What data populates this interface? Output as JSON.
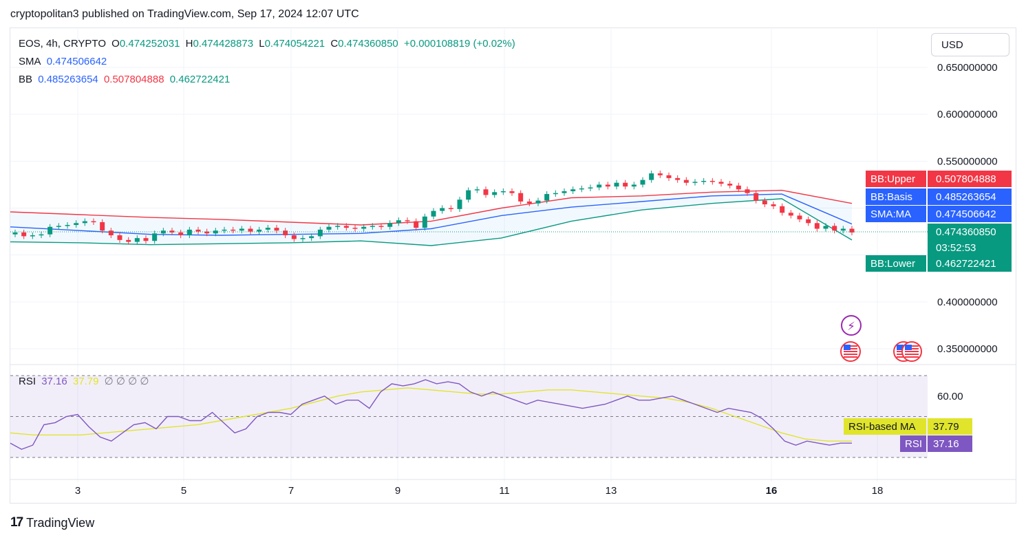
{
  "header": {
    "published_line": "cryptopolitan3 published on TradingView.com, Sep 17, 2024 12:07 UTC"
  },
  "legend": {
    "symbol": "EOS, 4h, CRYPTO",
    "open_label": "O",
    "open": "0.474252031",
    "high_label": "H",
    "high": "0.474428873",
    "low_label": "L",
    "low": "0.474054221",
    "close_label": "C",
    "close": "0.474360850",
    "change": "+0.000108819 (+0.02%)",
    "sma_label": "SMA",
    "sma": "0.474506642",
    "bb_label": "BB",
    "bb_basis": "0.485263654",
    "bb_upper": "0.507804888",
    "bb_lower": "0.462722421",
    "rsi_label": "RSI",
    "rsi": "37.16",
    "rsi_ma": "37.79",
    "rsi_extra": "∅ ∅ ∅ ∅"
  },
  "currency_button": "USD",
  "price_axis": {
    "ticks": [
      "0.650000000",
      "0.600000000",
      "0.550000000",
      "0.400000000",
      "0.350000000"
    ],
    "tick_values": [
      0.65,
      0.6,
      0.55,
      0.4,
      0.35
    ],
    "tags": [
      {
        "name": "BB:Upper",
        "value": "0.507804888",
        "color": "#f23645"
      },
      {
        "name": "BB:Basis",
        "value": "0.485263654",
        "color": "#2962ff"
      },
      {
        "name": "SMA:MA",
        "value": "0.474506642",
        "color": "#2962ff"
      },
      {
        "name": "",
        "value": "0.474360850",
        "sub": "03:52:53",
        "color": "#089981"
      },
      {
        "name": "BB:Lower",
        "value": "0.462722421",
        "color": "#089981"
      }
    ]
  },
  "rsi_axis": {
    "ticks": [
      "60.00"
    ],
    "tick_values": [
      60
    ],
    "tags": [
      {
        "name": "RSI-based MA",
        "value": "37.79",
        "color": "#e0e52b",
        "text": "#131722"
      },
      {
        "name": "RSI",
        "value": "37.16",
        "color": "#7e57c2",
        "text": "#ffffff"
      }
    ]
  },
  "time_axis": {
    "labels": [
      "3",
      "5",
      "7",
      "9",
      "11",
      "13",
      "16",
      "18"
    ],
    "bold": [
      "16"
    ]
  },
  "footer": {
    "brand": "TradingView"
  },
  "colors": {
    "up": "#089981",
    "down": "#f23645",
    "bb_upper": "#f23645",
    "bb_basis": "#2962ff",
    "bb_lower": "#089981",
    "rsi": "#7e57c2",
    "rsi_ma": "#e0e52b"
  },
  "chart_data": [
    {
      "type": "candlestick",
      "title": "EOS, 4h, CRYPTO",
      "ylim": [
        0.33,
        0.67
      ],
      "grid": true,
      "candles_close": [
        0.474,
        0.47,
        0.471,
        0.472,
        0.48,
        0.481,
        0.482,
        0.484,
        0.486,
        0.485,
        0.476,
        0.471,
        0.466,
        0.464,
        0.468,
        0.465,
        0.473,
        0.476,
        0.474,
        0.471,
        0.477,
        0.475,
        0.473,
        0.476,
        0.477,
        0.476,
        0.478,
        0.475,
        0.477,
        0.479,
        0.476,
        0.471,
        0.467,
        0.468,
        0.47,
        0.477,
        0.48,
        0.481,
        0.479,
        0.478,
        0.48,
        0.481,
        0.48,
        0.484,
        0.487,
        0.486,
        0.479,
        0.491,
        0.497,
        0.5,
        0.499,
        0.509,
        0.519,
        0.52,
        0.514,
        0.517,
        0.518,
        0.516,
        0.507,
        0.505,
        0.508,
        0.515,
        0.516,
        0.518,
        0.52,
        0.521,
        0.522,
        0.525,
        0.523,
        0.527,
        0.523,
        0.525,
        0.53,
        0.537,
        0.535,
        0.532,
        0.53,
        0.527,
        0.528,
        0.529,
        0.528,
        0.526,
        0.524,
        0.52,
        0.516,
        0.508,
        0.504,
        0.502,
        0.495,
        0.492,
        0.488,
        0.484,
        0.478,
        0.481,
        0.476,
        0.478,
        0.474
      ],
      "bb_upper": [
        0.496,
        0.493,
        0.49,
        0.488,
        0.485,
        0.482,
        0.486,
        0.5,
        0.511,
        0.513,
        0.517,
        0.519,
        0.505
      ],
      "bb_basis": [
        0.48,
        0.476,
        0.472,
        0.471,
        0.472,
        0.473,
        0.478,
        0.492,
        0.501,
        0.507,
        0.513,
        0.515,
        0.483
      ],
      "bb_lower": [
        0.464,
        0.463,
        0.461,
        0.462,
        0.463,
        0.465,
        0.46,
        0.468,
        0.486,
        0.498,
        0.505,
        0.51,
        0.466
      ],
      "time_labels": [
        "3",
        "5",
        "7",
        "9",
        "11",
        "13",
        "16",
        "18"
      ]
    },
    {
      "type": "line",
      "title": "RSI",
      "ylim": [
        30,
        70
      ],
      "series": [
        {
          "name": "RSI",
          "values": [
            37,
            34,
            36,
            46,
            47,
            50,
            51,
            45,
            40,
            38,
            42,
            46,
            47,
            44,
            50,
            50,
            48,
            48,
            52,
            47,
            42,
            44,
            50,
            52,
            52,
            51,
            56,
            58,
            60,
            56,
            58,
            58,
            54,
            62,
            66,
            65,
            66,
            68,
            66,
            67,
            66,
            62,
            60,
            62,
            60,
            58,
            56,
            58,
            57,
            56,
            55,
            54,
            55,
            56,
            58,
            60,
            58,
            58,
            59,
            60,
            58,
            56,
            54,
            52,
            54,
            53,
            52,
            49,
            44,
            38,
            36,
            38,
            37,
            36,
            37,
            37
          ]
        },
        {
          "name": "RSI-based MA",
          "values": [
            42,
            41,
            41,
            41,
            42,
            43,
            44,
            45,
            46,
            48,
            50,
            52,
            54,
            57,
            60,
            62,
            63,
            64,
            63,
            62,
            61,
            61,
            62,
            63,
            63,
            62,
            61,
            60,
            59,
            57,
            54,
            50,
            46,
            42,
            39,
            38,
            38
          ]
        }
      ]
    }
  ]
}
